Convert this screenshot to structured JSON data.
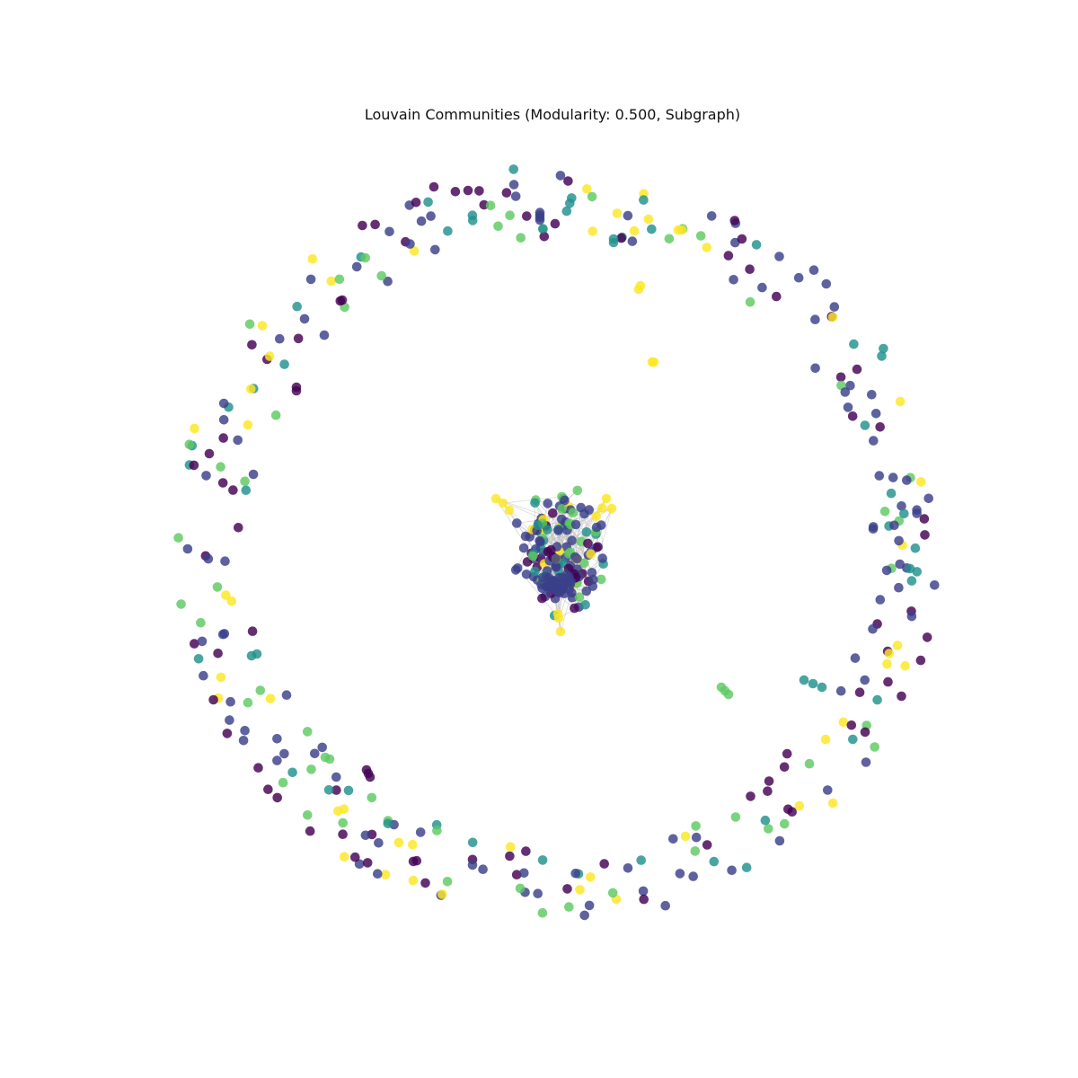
{
  "title": "Louvain Communities (Modularity: 0.500, Subgraph)",
  "palette": {
    "purple": "#440154",
    "indigo": "#3b3f8a",
    "teal": "#21918c",
    "green": "#5ec962",
    "yellow": "#fde725"
  },
  "edge_color": "#bfbfbf",
  "node_opacity": 0.82
}
